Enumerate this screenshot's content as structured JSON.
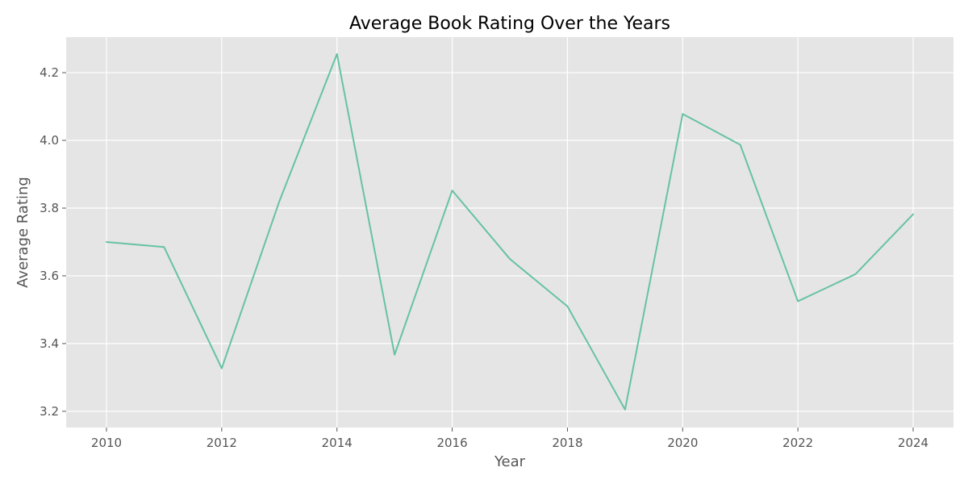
{
  "chart_data": {
    "type": "line",
    "title": "Average Book Rating Over the Years",
    "xlabel": "Year",
    "ylabel": "Average Rating",
    "x": [
      2010,
      2011,
      2012,
      2013,
      2014,
      2015,
      2016,
      2017,
      2018,
      2019,
      2020,
      2021,
      2022,
      2023,
      2024
    ],
    "series": [
      {
        "values": [
          3.7,
          3.685,
          3.327,
          3.82,
          4.255,
          3.367,
          3.852,
          3.65,
          3.51,
          3.205,
          4.078,
          3.987,
          3.525,
          3.605,
          3.782
        ],
        "color": "#66c2a5"
      }
    ],
    "xlim": [
      2009.3,
      2024.7
    ],
    "ylim": [
      3.152,
      4.305
    ],
    "xticks": [
      2010,
      2012,
      2014,
      2016,
      2018,
      2020,
      2022,
      2024
    ],
    "yticks": [
      3.2,
      3.4,
      3.6,
      3.8,
      4.0,
      4.2
    ],
    "ytick_labels": [
      "3.2",
      "3.4",
      "3.6",
      "3.8",
      "4.0",
      "4.2"
    ],
    "grid": true,
    "legend": false,
    "colors": {
      "plot_background": "#e5e5e5",
      "grid": "#ffffff"
    }
  }
}
